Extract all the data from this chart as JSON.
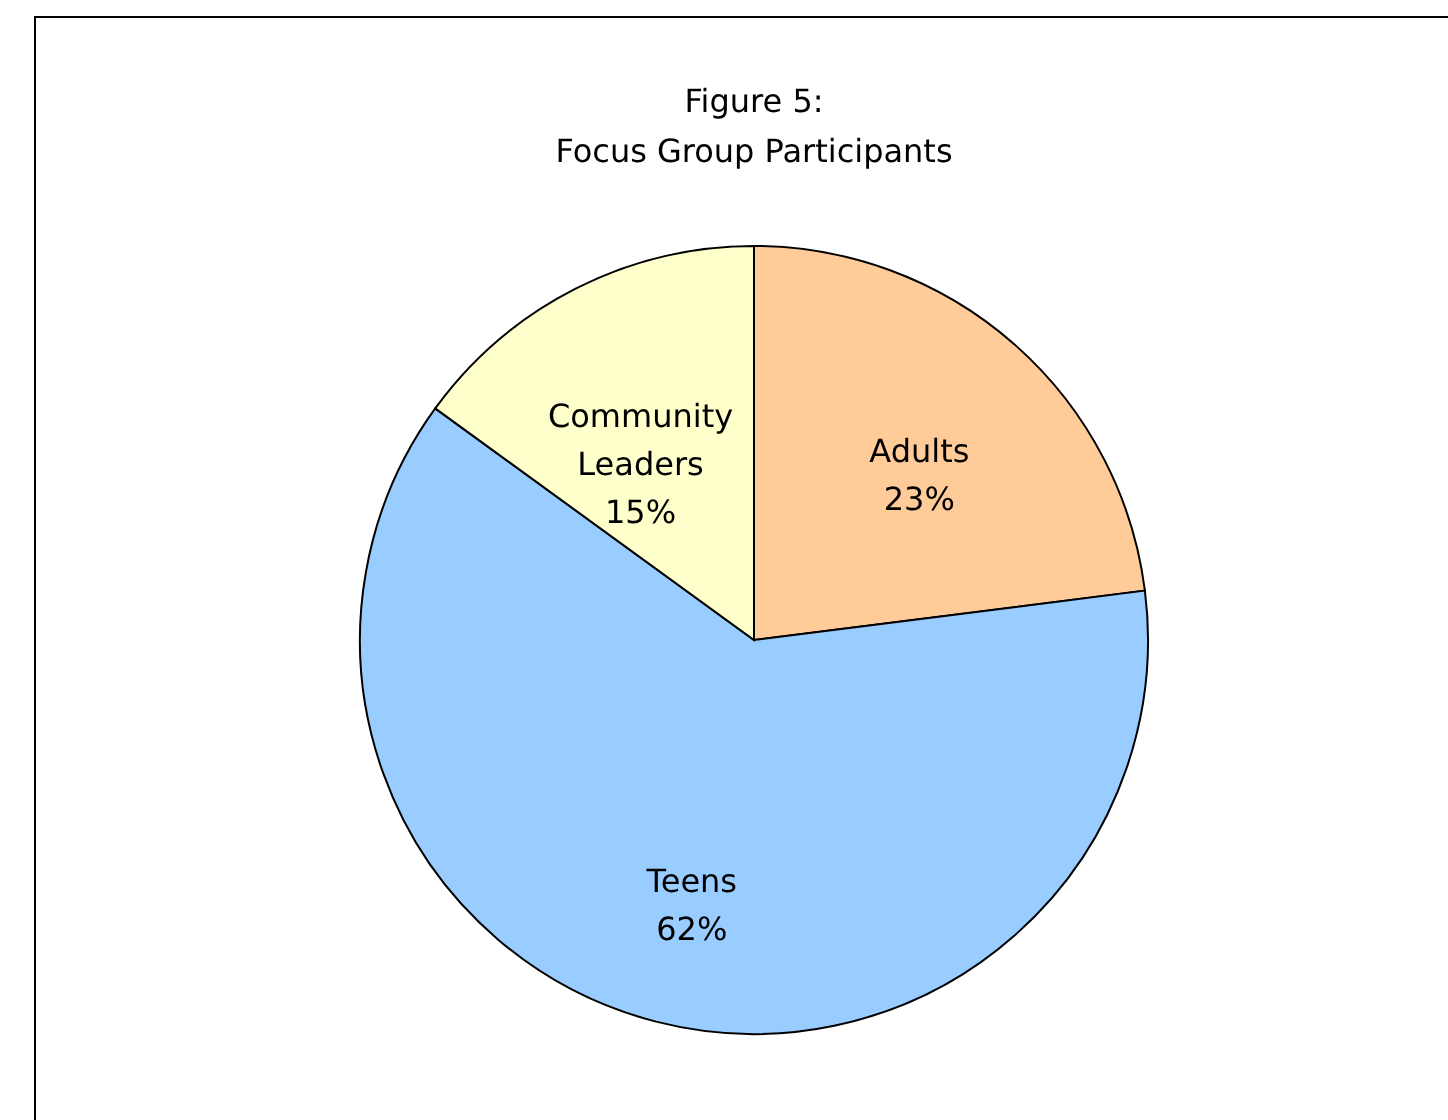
{
  "chart_data": {
    "type": "pie",
    "title": "Figure 5:\nFocus Group Participants",
    "categories": [
      "Adults",
      "Teens",
      "Community Leaders"
    ],
    "values": [
      23,
      62,
      15
    ],
    "value_labels": [
      "23%",
      "62%",
      "15%"
    ],
    "colors": [
      "#ffcc99",
      "#99ccff",
      "#ffffcc"
    ],
    "legend": false
  }
}
